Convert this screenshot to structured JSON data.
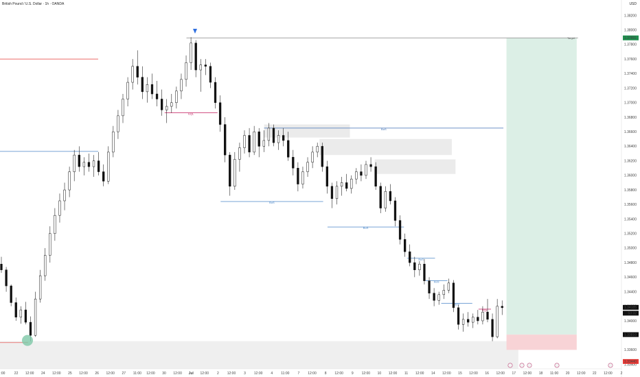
{
  "header": {
    "symbol_title": "British Pound / U.S. Dollar · 1h · OANDA",
    "currency": "USD"
  },
  "chart_data": {
    "type": "candlestick",
    "title": "British Pound / U.S. Dollar · 1h · OANDA",
    "y_tick_labels": [
      "1.38200",
      "1.38000",
      "1.37800",
      "1.37600",
      "1.37400",
      "1.37200",
      "1.37000",
      "1.36800",
      "1.36600",
      "1.36400",
      "1.36200",
      "1.36000",
      "1.35800",
      "1.35600",
      "1.35400",
      "1.35200",
      "1.35000",
      "1.34800",
      "1.34600",
      "1.34400",
      "1.34200",
      "1.34000",
      "1.33800",
      "1.33600",
      "1.33400"
    ],
    "y_ticks": [
      1.382,
      1.38,
      1.378,
      1.376,
      1.374,
      1.372,
      1.37,
      1.368,
      1.366,
      1.364,
      1.362,
      1.36,
      1.358,
      1.356,
      1.354,
      1.352,
      1.35,
      1.348,
      1.346,
      1.344,
      1.342,
      1.34,
      1.338,
      1.336,
      1.334
    ],
    "ylim": [
      1.3334,
      1.3828
    ],
    "x_tick_labels": [
      ":00",
      "22",
      "12:00",
      "24",
      "12:00",
      "25",
      "12:00",
      "26",
      "12:00",
      "27",
      "11:00",
      "12:00",
      "30",
      "12:00",
      "Jul",
      "12:00",
      "2",
      "12:00",
      "3",
      "12:00",
      "4",
      "11:00",
      "7",
      "12:00",
      "8",
      "12:00",
      "9",
      "12:00",
      "10",
      "12:00",
      "11",
      "12:00",
      "14",
      "12:00",
      "15",
      "12:00",
      "16",
      "12:00",
      "17",
      "12:00",
      "18",
      "11:00",
      "20",
      "12:00",
      "22",
      "12:00",
      "2"
    ],
    "price_labels": [
      {
        "text": "1.37891",
        "value": 1.37891,
        "color": "#1e8f4e",
        "text_color": "#ffffff"
      },
      {
        "text": "1.34185",
        "value": 1.34185,
        "color": "#111111",
        "text_color": "#ffffff"
      },
      {
        "text": "53:32",
        "value": 1.34105,
        "color": "#111111",
        "text_color": "#ffffff"
      },
      {
        "text": "1.33810",
        "value": 1.3381,
        "color": "#111111",
        "text_color": "#ffffff"
      },
      {
        "text": "1.33440",
        "value": 1.3344,
        "color": "#e53935",
        "text_color": "#ffffff"
      }
    ],
    "annotations": {
      "target_label": "Target",
      "lines": [
        {
          "label": "",
          "value": 1.37891,
          "from": 0.3,
          "to": 0.93,
          "color": "#888888"
        },
        {
          "label": "",
          "value": 1.376,
          "from": 0.0,
          "to": 0.158,
          "color": "#e53935"
        },
        {
          "label": "",
          "value": 1.3633,
          "from": 0.0,
          "to": 0.158,
          "color": "#4a86c8"
        },
        {
          "label": "",
          "value": 1.337,
          "from": 0.0,
          "to": 0.045,
          "color": "#e53935"
        },
        {
          "label": "EQL",
          "value": 1.3686,
          "from": 0.265,
          "to": 0.35,
          "color": "#c2185b"
        },
        {
          "label": "BoS",
          "value": 1.3665,
          "from": 0.425,
          "to": 0.81,
          "color": "#3f6fb5"
        },
        {
          "label": "BoS",
          "value": 1.3564,
          "from": 0.355,
          "to": 0.52,
          "color": "#4a86c8"
        },
        {
          "label": "BoS",
          "value": 1.3529,
          "from": 0.527,
          "to": 0.65,
          "color": "#4a86c8"
        },
        {
          "label": "BoS",
          "value": 1.3486,
          "from": 0.655,
          "to": 0.7,
          "color": "#4a86c8"
        },
        {
          "label": "BoS",
          "value": 1.3455,
          "from": 0.685,
          "to": 0.72,
          "color": "#4a86c8"
        },
        {
          "label": "BoS",
          "value": 1.3424,
          "from": 0.71,
          "to": 0.76,
          "color": "#4a86c8"
        },
        {
          "label": "EQL",
          "value": 1.3416,
          "from": 0.77,
          "to": 0.79,
          "color": "#c2185b"
        }
      ],
      "zones": [
        {
          "top": 1.367,
          "bottom": 1.3652,
          "from": 0.425,
          "to": 0.563,
          "color": "#ebebeb"
        },
        {
          "top": 1.365,
          "bottom": 1.3628,
          "from": 0.514,
          "to": 0.727,
          "color": "#ebebeb"
        },
        {
          "top": 1.3622,
          "bottom": 1.3602,
          "from": 0.603,
          "to": 0.733,
          "color": "#ebebeb"
        },
        {
          "top": 1.3372,
          "bottom": 1.3334,
          "from": 0.0,
          "to": 0.834,
          "color": "#efefef"
        }
      ],
      "position": {
        "entry": 1.3381,
        "target": 1.37891,
        "stop": 1.336,
        "from": 0.815,
        "to": 0.928,
        "profit_color": "#dcefe6",
        "loss_color": "#f8d3d6"
      }
    },
    "series": [
      {
        "values": [
          [
            1.3478,
            1.3488,
            1.3466,
            1.347
          ],
          [
            1.347,
            1.3474,
            1.344,
            1.3448
          ],
          [
            1.3448,
            1.345,
            1.342,
            1.3425
          ],
          [
            1.3425,
            1.3432,
            1.34,
            1.3405
          ],
          [
            1.3405,
            1.342,
            1.3396,
            1.3415
          ],
          [
            1.3415,
            1.3426,
            1.3395,
            1.3398
          ],
          [
            1.3398,
            1.3406,
            1.3372,
            1.338
          ],
          [
            1.338,
            1.344,
            1.3378,
            1.343
          ],
          [
            1.343,
            1.347,
            1.3425,
            1.3462
          ],
          [
            1.3462,
            1.35,
            1.3455,
            1.349
          ],
          [
            1.349,
            1.353,
            1.348,
            1.352
          ],
          [
            1.352,
            1.3555,
            1.351,
            1.3545
          ],
          [
            1.3545,
            1.3575,
            1.3535,
            1.3565
          ],
          [
            1.3565,
            1.359,
            1.3552,
            1.358
          ],
          [
            1.358,
            1.3612,
            1.357,
            1.3605
          ],
          [
            1.3605,
            1.3635,
            1.3592,
            1.3628
          ],
          [
            1.3628,
            1.364,
            1.3605,
            1.3612
          ],
          [
            1.3612,
            1.3625,
            1.36,
            1.3618
          ],
          [
            1.3618,
            1.363,
            1.3605,
            1.3612
          ],
          [
            1.3612,
            1.3628,
            1.3598,
            1.362
          ],
          [
            1.362,
            1.3632,
            1.36,
            1.3605
          ],
          [
            1.3605,
            1.3615,
            1.3585,
            1.3592
          ],
          [
            1.3592,
            1.364,
            1.3588,
            1.3632
          ],
          [
            1.3632,
            1.3668,
            1.3625,
            1.366
          ],
          [
            1.366,
            1.369,
            1.365,
            1.3682
          ],
          [
            1.3682,
            1.3712,
            1.3672,
            1.3705
          ],
          [
            1.3705,
            1.3735,
            1.3695,
            1.3728
          ],
          [
            1.3728,
            1.376,
            1.3718,
            1.375
          ],
          [
            1.375,
            1.3772,
            1.3725,
            1.3735
          ],
          [
            1.3735,
            1.375,
            1.3705,
            1.3715
          ],
          [
            1.3715,
            1.3735,
            1.37,
            1.3725
          ],
          [
            1.3725,
            1.374,
            1.3705,
            1.3712
          ],
          [
            1.3712,
            1.373,
            1.3695,
            1.3705
          ],
          [
            1.3705,
            1.3718,
            1.3682,
            1.369
          ],
          [
            1.369,
            1.3705,
            1.3672,
            1.3695
          ],
          [
            1.3695,
            1.3712,
            1.3686,
            1.37
          ],
          [
            1.37,
            1.3722,
            1.3692,
            1.3716
          ],
          [
            1.3716,
            1.374,
            1.3705,
            1.3732
          ],
          [
            1.3732,
            1.3765,
            1.3722,
            1.3755
          ],
          [
            1.3755,
            1.379,
            1.3745,
            1.3782
          ],
          [
            1.3782,
            1.3786,
            1.3735,
            1.3745
          ],
          [
            1.3745,
            1.376,
            1.3715,
            1.3752
          ],
          [
            1.3752,
            1.376,
            1.3738,
            1.375
          ],
          [
            1.375,
            1.3755,
            1.372,
            1.3728
          ],
          [
            1.3728,
            1.3735,
            1.3692,
            1.37
          ],
          [
            1.37,
            1.371,
            1.366,
            1.367
          ],
          [
            1.367,
            1.368,
            1.3618,
            1.3628
          ],
          [
            1.3628,
            1.3632,
            1.3572,
            1.3585
          ],
          [
            1.3585,
            1.3632,
            1.358,
            1.3622
          ],
          [
            1.3622,
            1.3645,
            1.3605,
            1.3638
          ],
          [
            1.3638,
            1.3662,
            1.363,
            1.3655
          ],
          [
            1.3655,
            1.3665,
            1.3625,
            1.3632
          ],
          [
            1.3632,
            1.3668,
            1.3628,
            1.366
          ],
          [
            1.366,
            1.3665,
            1.3625,
            1.364
          ],
          [
            1.364,
            1.3662,
            1.3632,
            1.3648
          ],
          [
            1.3648,
            1.3672,
            1.364,
            1.3665
          ],
          [
            1.3665,
            1.367,
            1.364,
            1.3645
          ],
          [
            1.3645,
            1.3662,
            1.3635,
            1.3655
          ],
          [
            1.3655,
            1.3665,
            1.364,
            1.3648
          ],
          [
            1.3648,
            1.366,
            1.362,
            1.3625
          ],
          [
            1.3625,
            1.3635,
            1.36,
            1.361
          ],
          [
            1.361,
            1.3618,
            1.3578,
            1.3588
          ],
          [
            1.3588,
            1.3612,
            1.3582,
            1.3605
          ],
          [
            1.3605,
            1.3625,
            1.3598,
            1.3618
          ],
          [
            1.3618,
            1.364,
            1.361,
            1.3632
          ],
          [
            1.3632,
            1.3645,
            1.3625,
            1.364
          ],
          [
            1.364,
            1.3645,
            1.3605,
            1.3612
          ],
          [
            1.3612,
            1.362,
            1.3575,
            1.3585
          ],
          [
            1.3585,
            1.359,
            1.3555,
            1.3568
          ],
          [
            1.3568,
            1.3592,
            1.356,
            1.3585
          ],
          [
            1.3585,
            1.3598,
            1.3572,
            1.359
          ],
          [
            1.359,
            1.3602,
            1.3578,
            1.3582
          ],
          [
            1.3582,
            1.36,
            1.3575,
            1.3595
          ],
          [
            1.3595,
            1.361,
            1.3588,
            1.3605
          ],
          [
            1.3605,
            1.3615,
            1.3592,
            1.36
          ],
          [
            1.36,
            1.362,
            1.3595,
            1.3615
          ],
          [
            1.3615,
            1.3625,
            1.3605,
            1.3612
          ],
          [
            1.3612,
            1.3618,
            1.358,
            1.3585
          ],
          [
            1.3585,
            1.359,
            1.3548,
            1.3555
          ],
          [
            1.3555,
            1.3585,
            1.355,
            1.3578
          ],
          [
            1.3578,
            1.3588,
            1.356,
            1.3565
          ],
          [
            1.3565,
            1.357,
            1.353,
            1.3538
          ],
          [
            1.3538,
            1.3545,
            1.3505,
            1.3512
          ],
          [
            1.3512,
            1.352,
            1.3488,
            1.3495
          ],
          [
            1.3495,
            1.3505,
            1.3475,
            1.348
          ],
          [
            1.348,
            1.3488,
            1.346,
            1.347
          ],
          [
            1.347,
            1.3482,
            1.3462,
            1.3478
          ],
          [
            1.3478,
            1.3485,
            1.345,
            1.3455
          ],
          [
            1.3455,
            1.346,
            1.343,
            1.3438
          ],
          [
            1.3438,
            1.3445,
            1.342,
            1.3428
          ],
          [
            1.3428,
            1.344,
            1.3422,
            1.3436
          ],
          [
            1.3436,
            1.345,
            1.343,
            1.3442
          ],
          [
            1.3442,
            1.3458,
            1.3438,
            1.3452
          ],
          [
            1.3452,
            1.3456,
            1.3412,
            1.3418
          ],
          [
            1.3418,
            1.3422,
            1.3388,
            1.3395
          ],
          [
            1.3395,
            1.341,
            1.3385,
            1.3402
          ],
          [
            1.3402,
            1.3412,
            1.3392,
            1.3398
          ],
          [
            1.3398,
            1.341,
            1.339,
            1.3405
          ],
          [
            1.3405,
            1.3415,
            1.3395,
            1.34
          ],
          [
            1.34,
            1.342,
            1.3395,
            1.3412
          ],
          [
            1.3412,
            1.343,
            1.3398,
            1.3402
          ],
          [
            1.3402,
            1.341,
            1.3372,
            1.3378
          ],
          [
            1.3378,
            1.343,
            1.3376,
            1.342
          ],
          [
            1.342,
            1.3428,
            1.3408,
            1.3418
          ]
        ]
      }
    ]
  }
}
